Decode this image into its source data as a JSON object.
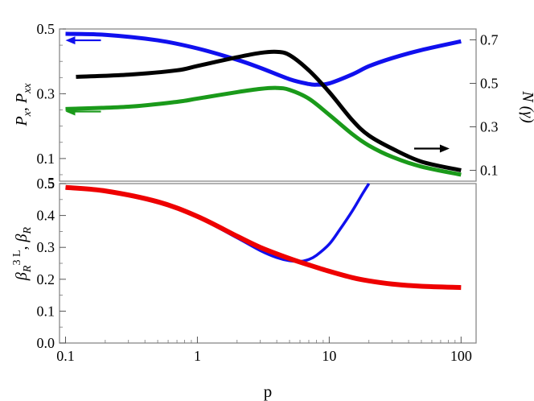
{
  "chart_data": [
    {
      "type": "line",
      "xscale": "log",
      "xlim": [
        0.09,
        130
      ],
      "ylim_left": [
        0.03,
        0.5
      ],
      "ylim_right": [
        0.05,
        0.75
      ],
      "yticks_left": [
        "0.1",
        "0.3",
        "0.5"
      ],
      "yticks_right": [
        "0.1",
        "0.3",
        "0.5",
        "0.7"
      ],
      "ylabel_left": {
        "sym1": "P",
        "sub1": "x",
        "sep": ",  ",
        "sym2": "P",
        "sub2": "xx"
      },
      "ylabel_right": "N (γ)",
      "grid": false,
      "series": [
        {
          "color": "#1010ee",
          "axis": "left",
          "x": [
            0.1,
            0.2,
            0.5,
            1,
            2,
            3,
            5,
            7,
            8,
            10,
            15,
            20,
            30,
            50,
            100
          ],
          "y": [
            0.485,
            0.482,
            0.465,
            0.44,
            0.405,
            0.38,
            0.345,
            0.33,
            0.328,
            0.332,
            0.36,
            0.385,
            0.41,
            0.435,
            0.462
          ]
        },
        {
          "color": "#000000",
          "axis": "right",
          "x": [
            0.12,
            0.3,
            0.7,
            1,
            2,
            3,
            4,
            5,
            7,
            10,
            15,
            20,
            30,
            50,
            100
          ],
          "y": [
            0.53,
            0.54,
            0.56,
            0.58,
            0.62,
            0.64,
            0.645,
            0.63,
            0.56,
            0.46,
            0.33,
            0.26,
            0.2,
            0.14,
            0.1
          ]
        },
        {
          "color": "#1a9a1a",
          "axis": "left",
          "x": [
            0.1,
            0.3,
            0.7,
            1,
            2,
            3,
            4,
            5,
            7,
            10,
            15,
            20,
            30,
            50,
            100
          ],
          "y": [
            0.253,
            0.26,
            0.275,
            0.285,
            0.305,
            0.315,
            0.318,
            0.312,
            0.285,
            0.235,
            0.175,
            0.14,
            0.105,
            0.075,
            0.05
          ]
        }
      ],
      "arrows": [
        {
          "color": "#1010ee",
          "x": 0.1,
          "y": 0.465,
          "axis": "left",
          "direction": "left"
        },
        {
          "color": "#1a9a1a",
          "x": 0.1,
          "y": 0.245,
          "axis": "left",
          "direction": "left"
        },
        {
          "color": "#000000",
          "x": 60,
          "y": 0.2,
          "axis": "right",
          "direction": "right"
        }
      ]
    },
    {
      "type": "line",
      "xscale": "log",
      "xlim": [
        0.09,
        130
      ],
      "ylim": [
        0,
        0.5
      ],
      "xticks": [
        "0.1",
        "1",
        "10",
        "100"
      ],
      "yticks": [
        "0.0",
        "0.1",
        "0.2",
        "0.3",
        "0.4",
        "0.5"
      ],
      "xlabel": "p",
      "ylabel": {
        "sym1": "β",
        "sub1": "R",
        "sup1": "3 L",
        "sep": ",  ",
        "sym2": "β",
        "sub2": "R"
      },
      "grid": false,
      "series": [
        {
          "color": "#1010ee",
          "x": [
            0.1,
            0.2,
            0.5,
            1,
            2,
            3,
            4,
            5,
            6,
            7,
            8,
            10,
            12,
            15,
            18,
            20
          ],
          "y": [
            0.487,
            0.475,
            0.44,
            0.395,
            0.33,
            0.29,
            0.268,
            0.258,
            0.256,
            0.262,
            0.275,
            0.31,
            0.355,
            0.415,
            0.47,
            0.5
          ]
        },
        {
          "color": "#ee0000",
          "x": [
            0.1,
            0.2,
            0.5,
            1,
            2,
            3,
            5,
            7,
            10,
            15,
            20,
            30,
            50,
            100
          ],
          "y": [
            0.488,
            0.477,
            0.443,
            0.397,
            0.335,
            0.3,
            0.265,
            0.245,
            0.225,
            0.205,
            0.195,
            0.185,
            0.178,
            0.174
          ]
        }
      ]
    }
  ]
}
